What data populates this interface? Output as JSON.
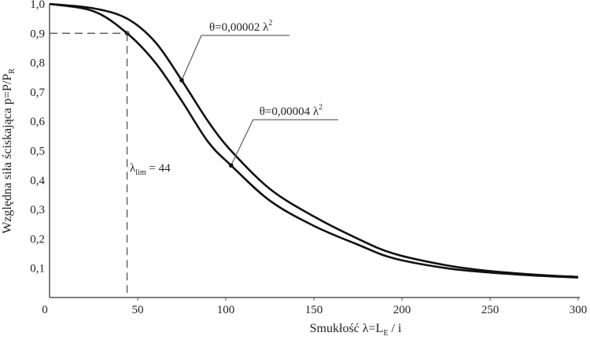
{
  "chart_data": {
    "type": "line",
    "title": "",
    "xlabel": {
      "main": "Smukłość λ=L",
      "sub": "E",
      "tail": " / i"
    },
    "ylabel": {
      "main": "Względna siła ściskająca p=P/P",
      "sub": "R"
    },
    "xlim": [
      0,
      300
    ],
    "ylim": [
      0,
      1.0
    ],
    "grid": false,
    "xticks": [
      0,
      50,
      100,
      150,
      200,
      250,
      300
    ],
    "xtick_labels": [
      "0",
      "50",
      "100",
      "150",
      "200",
      "250",
      "300"
    ],
    "yticks": [
      0.1,
      0.2,
      0.3,
      0.4,
      0.5,
      0.6,
      0.7,
      0.8,
      0.9,
      1.0
    ],
    "ytick_labels": [
      "0,1",
      "0,2",
      "0,3",
      "0,4",
      "0,5",
      "0,6",
      "0,7",
      "0,8",
      "0,9",
      "1,0"
    ],
    "series": [
      {
        "name": "θ=0,00002 λ²",
        "label_main": "θ=0,00002 λ",
        "label_sup": "2",
        "marker": [
          75,
          0.74
        ],
        "x": [
          0,
          25,
          44,
          60,
          75,
          90,
          103,
          125,
          150,
          175,
          195,
          225,
          250,
          275,
          300
        ],
        "y": [
          1.0,
          0.985,
          0.95,
          0.87,
          0.74,
          0.6,
          0.5,
          0.37,
          0.276,
          0.2,
          0.15,
          0.11,
          0.09,
          0.078,
          0.07
        ]
      },
      {
        "name": "θ=0,00004 λ²",
        "label_main": "θ=0,00004 λ",
        "label_sup": "2",
        "marker": [
          103,
          0.45
        ],
        "x": [
          0,
          25,
          44,
          60,
          75,
          90,
          103,
          125,
          150,
          175,
          195,
          225,
          250,
          275,
          300
        ],
        "y": [
          1.0,
          0.975,
          0.9,
          0.8,
          0.67,
          0.53,
          0.45,
          0.33,
          0.244,
          0.18,
          0.134,
          0.1,
          0.085,
          0.075,
          0.068
        ]
      }
    ],
    "annotations": [
      {
        "type": "reference-point",
        "x": 44,
        "y": 0.9,
        "label_main": "λ",
        "label_sub": "lim",
        "label_tail": " = 44"
      }
    ],
    "colors": {
      "line": "#111111",
      "axis": "#555555",
      "leader": "#666666"
    }
  }
}
